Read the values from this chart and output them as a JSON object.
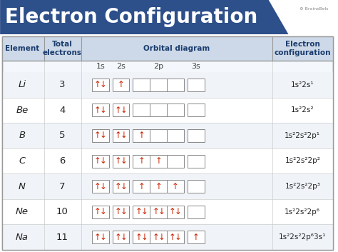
{
  "title": "Electron Configuration",
  "title_bg": "#2d4f8a",
  "title_color": "#ffffff",
  "header_bg": "#cdd9e8",
  "header_color": "#1a3c6e",
  "table_bg": "#ffffff",
  "border_color": "#999999",
  "arrow_color": "#cc2200",
  "box_border_color": "#999999",
  "subshell_label_color": "#444444",
  "elements": [
    "Li",
    "Be",
    "B",
    "C",
    "N",
    "Ne",
    "Na"
  ],
  "totals": [
    "3",
    "4",
    "5",
    "6",
    "7",
    "10",
    "11"
  ],
  "configs": [
    [
      "1s",
      "2",
      "2s",
      "1"
    ],
    [
      "1s",
      "2",
      "2s",
      "2"
    ],
    [
      "1s",
      "2",
      "2s",
      "2",
      "2p",
      "1"
    ],
    [
      "1s",
      "2",
      "2s",
      "2",
      "2p",
      "2"
    ],
    [
      "1s",
      "2",
      "2s",
      "2",
      "2p",
      "3"
    ],
    [
      "1s",
      "2",
      "2s",
      "2",
      "2p",
      "6"
    ],
    [
      "1s",
      "2",
      "2s",
      "2",
      "2p",
      "6",
      "3s",
      "1"
    ]
  ],
  "orbital_data_1s": [
    2,
    2,
    2,
    2,
    2,
    2,
    2
  ],
  "orbital_data_2s": [
    1,
    2,
    2,
    2,
    2,
    2,
    2
  ],
  "orbital_data_2p": [
    [
      0,
      0,
      0
    ],
    [
      0,
      0,
      0
    ],
    [
      1,
      0,
      0
    ],
    [
      1,
      1,
      0
    ],
    [
      1,
      1,
      1
    ],
    [
      2,
      2,
      2
    ],
    [
      2,
      2,
      2
    ]
  ],
  "orbital_data_3s": [
    0,
    0,
    0,
    0,
    0,
    0,
    1
  ],
  "figw": 4.74,
  "figh": 3.53,
  "dpi": 100
}
